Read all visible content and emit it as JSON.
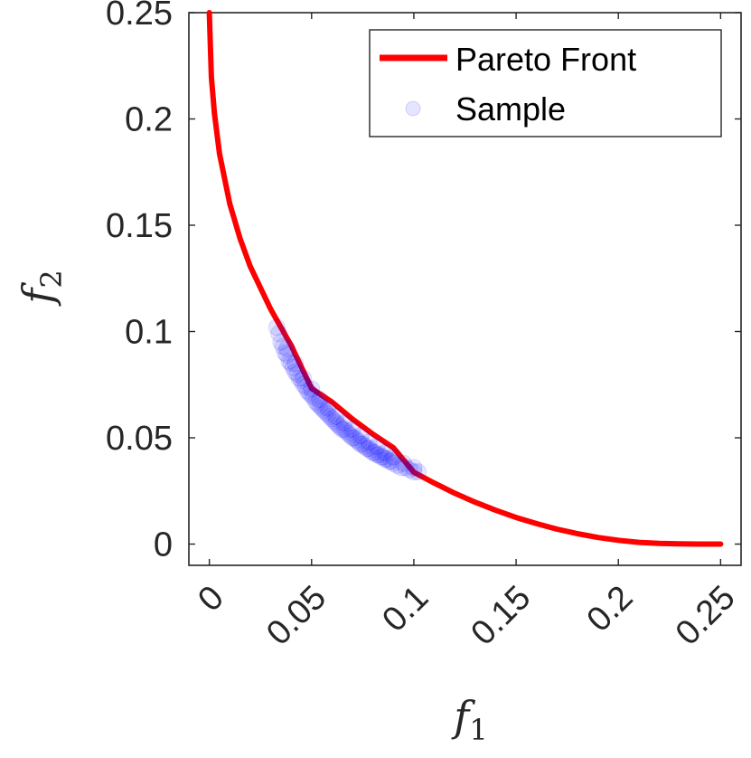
{
  "chart_data": {
    "type": "scatter",
    "title": "",
    "xlabel": {
      "main": "f",
      "sub": "1"
    },
    "ylabel": {
      "main": "f",
      "sub": "2"
    },
    "xlim": [
      -0.01,
      0.26
    ],
    "ylim": [
      -0.01,
      0.25
    ],
    "x_ticks": [
      0,
      0.05,
      0.1,
      0.15,
      0.2,
      0.25
    ],
    "x_tick_labels": [
      "0",
      "0.05",
      "0.1",
      "0.15",
      "0.2",
      "0.25"
    ],
    "y_ticks": [
      0,
      0.05,
      0.1,
      0.15,
      0.2,
      0.25
    ],
    "y_tick_labels": [
      "0",
      "0.05",
      "0.1",
      "0.15",
      "0.2",
      "0.25"
    ],
    "grid": false,
    "legend_position": "top-right",
    "colors": {
      "front": "#ff0000",
      "sample": "#0000ff",
      "axis": "#262626"
    },
    "series": [
      {
        "name": "Pareto Front",
        "kind": "line",
        "x": [
          0.0,
          0.001,
          0.0025,
          0.005,
          0.01,
          0.015,
          0.02,
          0.03,
          0.04,
          0.05,
          0.06,
          0.07,
          0.08,
          0.09,
          0.1,
          0.11,
          0.12,
          0.13,
          0.14,
          0.15,
          0.16,
          0.17,
          0.18,
          0.19,
          0.2,
          0.21,
          0.22,
          0.23,
          0.24,
          0.25
        ],
        "y": [
          0.25,
          0.2197,
          0.2025,
          0.1836,
          0.16,
          0.1438,
          0.1306,
          0.1105,
          0.0935,
          0.0732,
          0.0668,
          0.0588,
          0.0517,
          0.0453,
          0.0338,
          0.0287,
          0.0239,
          0.0197,
          0.0159,
          0.0125,
          0.0096,
          0.007,
          0.0049,
          0.0031,
          0.0018,
          0.0008,
          0.0003,
          0.0001,
          0.0,
          0.0
        ]
      },
      {
        "name": "Sample",
        "kind": "scatter",
        "x": [
          0.033,
          0.034,
          0.035,
          0.036,
          0.037,
          0.038,
          0.039,
          0.04,
          0.041,
          0.042,
          0.043,
          0.044,
          0.045,
          0.046,
          0.047,
          0.048,
          0.049,
          0.05,
          0.051,
          0.052,
          0.053,
          0.054,
          0.055,
          0.056,
          0.057,
          0.058,
          0.059,
          0.06,
          0.061,
          0.062,
          0.063,
          0.064,
          0.065,
          0.066,
          0.067,
          0.068,
          0.069,
          0.07,
          0.071,
          0.072,
          0.073,
          0.074,
          0.075,
          0.076,
          0.077,
          0.078,
          0.079,
          0.08,
          0.081,
          0.082,
          0.083,
          0.084,
          0.085,
          0.086,
          0.087,
          0.088,
          0.089,
          0.09,
          0.092,
          0.094,
          0.096,
          0.098,
          0.1,
          0.102,
          0.038,
          0.042,
          0.046,
          0.05,
          0.054,
          0.058,
          0.062,
          0.066,
          0.07,
          0.074,
          0.078,
          0.082,
          0.086,
          0.09,
          0.095,
          0.1
        ],
        "y": [
          0.102,
          0.099,
          0.095,
          0.093,
          0.09,
          0.089,
          0.086,
          0.085,
          0.083,
          0.081,
          0.08,
          0.078,
          0.077,
          0.075,
          0.074,
          0.072,
          0.071,
          0.07,
          0.069,
          0.067,
          0.066,
          0.065,
          0.064,
          0.063,
          0.062,
          0.061,
          0.06,
          0.059,
          0.058,
          0.057,
          0.056,
          0.055,
          0.054,
          0.054,
          0.053,
          0.052,
          0.051,
          0.05,
          0.05,
          0.049,
          0.048,
          0.047,
          0.047,
          0.046,
          0.045,
          0.045,
          0.044,
          0.043,
          0.043,
          0.042,
          0.042,
          0.041,
          0.041,
          0.04,
          0.04,
          0.039,
          0.039,
          0.038,
          0.037,
          0.036,
          0.036,
          0.035,
          0.034,
          0.034,
          0.092,
          0.085,
          0.078,
          0.073,
          0.068,
          0.064,
          0.06,
          0.057,
          0.054,
          0.051,
          0.048,
          0.046,
          0.043,
          0.041,
          0.038,
          0.036
        ]
      }
    ]
  }
}
